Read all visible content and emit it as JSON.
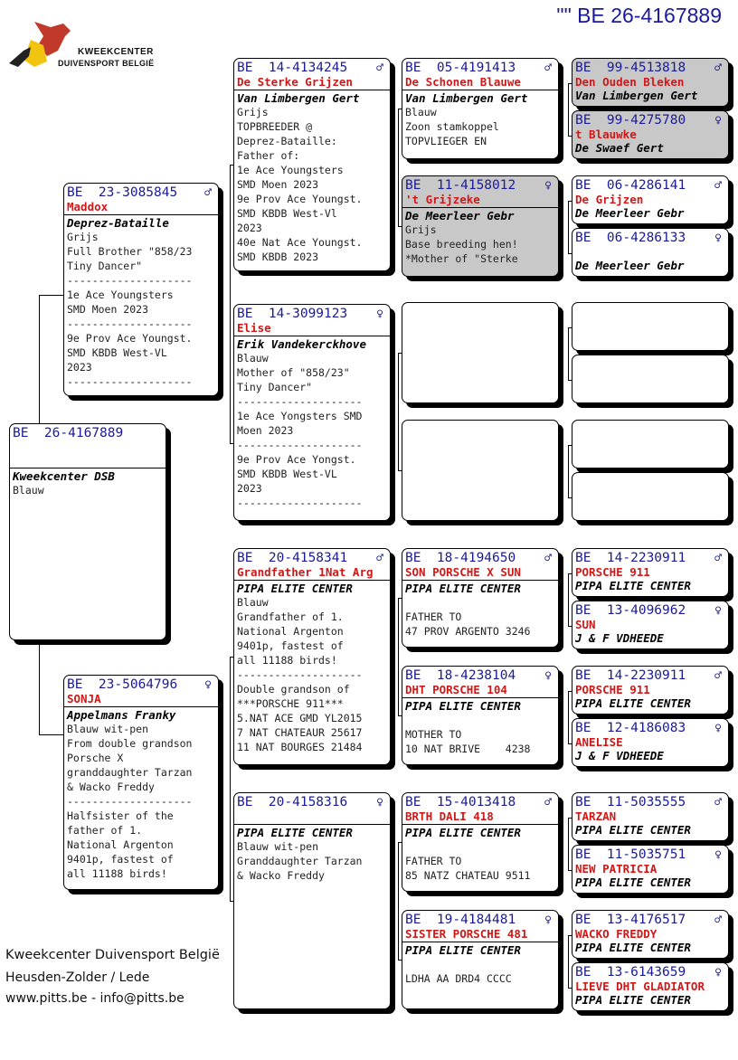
{
  "header": {
    "title": "\"\"  BE  26-4167889"
  },
  "logo": {
    "line1": "KWEEKCENTER",
    "line2": "DUIVENSPORT BELGIË"
  },
  "footer": {
    "line1": "Kweekcenter Duivensport België",
    "line2": "Heusden-Zolder / Lede",
    "line3": "www.pitts.be - info@pitts.be"
  },
  "colors": {
    "ring": "#1a1a9a",
    "name": "#d01818",
    "highlight_box": "#c8c8c8"
  },
  "pedigree": [
    {
      "ring": "BE  26-4167889",
      "sex": "",
      "name": "",
      "owner": "Kweekcenter DSB",
      "lines": [
        "Blauw"
      ]
    },
    {
      "ring": "BE  23-3085845",
      "sex": "♂",
      "name": "Maddox",
      "owner": "Deprez-Bataille",
      "lines": [
        "Grijs",
        "Full Brother \"858/23",
        "Tiny Dancer\"",
        "--------------------",
        "1e Ace Youngsters",
        "SMD Moen 2023",
        "--------------------",
        "9e Prov Ace Youngst.",
        "SMD KBDB West-VL",
        "2023",
        "--------------------"
      ]
    },
    {
      "ring": "BE  23-5064796",
      "sex": "♀",
      "name": "SONJA",
      "owner": "Appelmans Franky",
      "lines": [
        "Blauw wit-pen",
        "From double grandson",
        "Porsche X",
        "granddaughter Tarzan",
        "& Wacko Freddy",
        "--------------------",
        "Halfsister of the",
        "father of 1.",
        "National Argenton",
        "9401p, fastest of",
        "all 11188 birds!"
      ]
    },
    {
      "ring": "BE  14-4134245",
      "sex": "♂",
      "name": "De Sterke Grijzen",
      "owner": "Van Limbergen Gert",
      "lines": [
        "Grijs",
        "TOPBREEDER @",
        "Deprez-Bataille:",
        "Father of:",
        "1e Ace Youngsters",
        "SMD Moen 2023",
        "9e Prov Ace Youngst.",
        "SMD KBDB West-Vl",
        "2023",
        "40e Nat Ace Youngst.",
        "SMD KBDB 2023"
      ]
    },
    {
      "ring": "BE  14-3099123",
      "sex": "♀",
      "name": "Elise",
      "owner": "Erik Vandekerckhove",
      "lines": [
        "Blauw",
        "Mother of \"858/23\"",
        "Tiny Dancer\"",
        "--------------------",
        "1e Ace Yongsters SMD",
        "Moen 2023",
        "--------------------",
        "9e Prov Ace Yongst.",
        "SMD KBDB West-VL",
        "2023",
        "--------------------"
      ]
    },
    {
      "ring": "BE  20-4158341",
      "sex": "♂",
      "name": "Grandfather 1Nat Arg",
      "owner": "PIPA ELITE CENTER",
      "lines": [
        "Blauw",
        "Grandfather of 1.",
        "National Argenton",
        "9401p, fastest of",
        "all 11188 birds!",
        "--------------------",
        "Double grandson of",
        "***PORSCHE 911***",
        "5.NAT ACE GMD YL2015",
        "7 NAT CHATEAUR 25617",
        "11 NAT BOURGES 21484"
      ]
    },
    {
      "ring": "BE  20-4158316",
      "sex": "♀",
      "name": "",
      "owner": "PIPA ELITE CENTER",
      "lines": [
        "Blauw wit-pen",
        "Granddaughter Tarzan",
        "& Wacko Freddy"
      ]
    },
    {
      "ring": "BE  05-4191413",
      "sex": "♂",
      "name": "De Schonen Blauwe",
      "owner": "Van Limbergen Gert",
      "lines": [
        "Blauw",
        "Zoon stamkoppel",
        "TOPVLIEGER EN"
      ]
    },
    {
      "ring": "BE  11-4158012",
      "sex": "♀",
      "name": "'t Grijzeke",
      "owner": "De Meerleer Gebr",
      "lines": [
        "Grijs",
        "Base breeding hen!",
        "*Mother of \"Sterke"
      ],
      "highlight": true
    },
    {
      "ring": "BE  18-4194650",
      "sex": "♂",
      "name": "SON PORSCHE X SUN",
      "owner": "PIPA ELITE CENTER",
      "lines": [
        "",
        "FATHER TO",
        "47 PROV ARGENTO 3246"
      ]
    },
    {
      "ring": "BE  18-4238104",
      "sex": "♀",
      "name": "DHT PORSCHE 104",
      "owner": "PIPA ELITE CENTER",
      "lines": [
        "",
        "MOTHER TO",
        "10 NAT BRIVE    4238"
      ]
    },
    {
      "ring": "BE  15-4013418",
      "sex": "♂",
      "name": "BRTH DALI 418",
      "owner": "PIPA ELITE CENTER",
      "lines": [
        "",
        "FATHER TO",
        "85 NATZ CHATEAU 9511"
      ]
    },
    {
      "ring": "BE  19-4184481",
      "sex": "♀",
      "name": "SISTER PORSCHE 481",
      "owner": "PIPA ELITE CENTER",
      "lines": [
        "",
        "LDHA AA DRD4 CCCC"
      ]
    },
    {
      "ring": "BE  99-4513818",
      "sex": "♂",
      "name": "Den Ouden Bleken",
      "owner": "Van Limbergen Gert",
      "highlight": true
    },
    {
      "ring": "BE  99-4275780",
      "sex": "♀",
      "name": "t Blauwke",
      "owner": "De Swaef Gert",
      "highlight": true
    },
    {
      "ring": "BE  06-4286141",
      "sex": "♂",
      "name": "De Grijzen",
      "owner": "De Meerleer Gebr"
    },
    {
      "ring": "BE  06-4286133",
      "sex": "♀",
      "name": "",
      "owner": "De Meerleer Gebr"
    },
    {
      "ring": "BE  14-2230911",
      "sex": "♂",
      "name": "PORSCHE 911",
      "owner": "PIPA ELITE CENTER"
    },
    {
      "ring": "BE  13-4096962",
      "sex": "♀",
      "name": "SUN",
      "owner": "J & F VDHEEDE"
    },
    {
      "ring": "BE  14-2230911",
      "sex": "♂",
      "name": "PORSCHE 911",
      "owner": "PIPA ELITE CENTER"
    },
    {
      "ring": "BE  12-4186083",
      "sex": "♀",
      "name": "ANELISE",
      "owner": "J & F VDHEEDE"
    },
    {
      "ring": "BE  11-5035555",
      "sex": "♂",
      "name": "TARZAN",
      "owner": "PIPA ELITE CENTER"
    },
    {
      "ring": "BE  11-5035751",
      "sex": "♀",
      "name": "NEW PATRICIA",
      "owner": "PIPA ELITE CENTER"
    },
    {
      "ring": "BE  13-4176517",
      "sex": "♂",
      "name": "WACKO FREDDY",
      "owner": "PIPA ELITE CENTER"
    },
    {
      "ring": "BE  13-6143659",
      "sex": "♀",
      "name": "LIEVE DHT GLADIATOR",
      "owner": "PIPA ELITE CENTER"
    }
  ]
}
